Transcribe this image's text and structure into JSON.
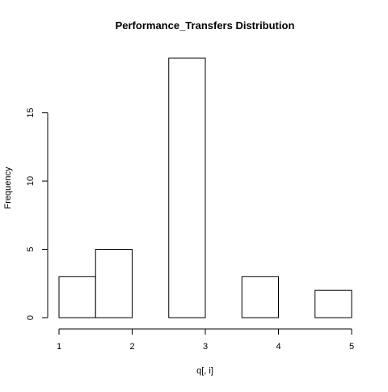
{
  "chart_data": {
    "type": "bar",
    "title": "Performance_Transfers Distribution",
    "xlabel": "q[, i]",
    "ylabel": "Frequency",
    "bins": [
      {
        "start": 1.0,
        "end": 1.5,
        "count": 3
      },
      {
        "start": 1.5,
        "end": 2.0,
        "count": 5
      },
      {
        "start": 2.0,
        "end": 2.5,
        "count": 0
      },
      {
        "start": 2.5,
        "end": 3.0,
        "count": 19
      },
      {
        "start": 3.0,
        "end": 3.5,
        "count": 0
      },
      {
        "start": 3.5,
        "end": 4.0,
        "count": 3
      },
      {
        "start": 4.0,
        "end": 4.5,
        "count": 0
      },
      {
        "start": 4.5,
        "end": 5.0,
        "count": 2
      }
    ],
    "xlim": [
      1,
      5
    ],
    "ylim": [
      0,
      19
    ],
    "x_ticks": [
      {
        "value": 1,
        "label": "1"
      },
      {
        "value": 2,
        "label": "2"
      },
      {
        "value": 3,
        "label": "3"
      },
      {
        "value": 4,
        "label": "4"
      },
      {
        "value": 5,
        "label": "5"
      }
    ],
    "y_ticks": [
      {
        "value": 0,
        "label": "0"
      },
      {
        "value": 5,
        "label": "5"
      },
      {
        "value": 10,
        "label": "10"
      },
      {
        "value": 15,
        "label": "15"
      }
    ],
    "grid": false,
    "legend": "none",
    "colors": {
      "bar_fill": "#ffffff",
      "bar_stroke": "#000000"
    }
  }
}
